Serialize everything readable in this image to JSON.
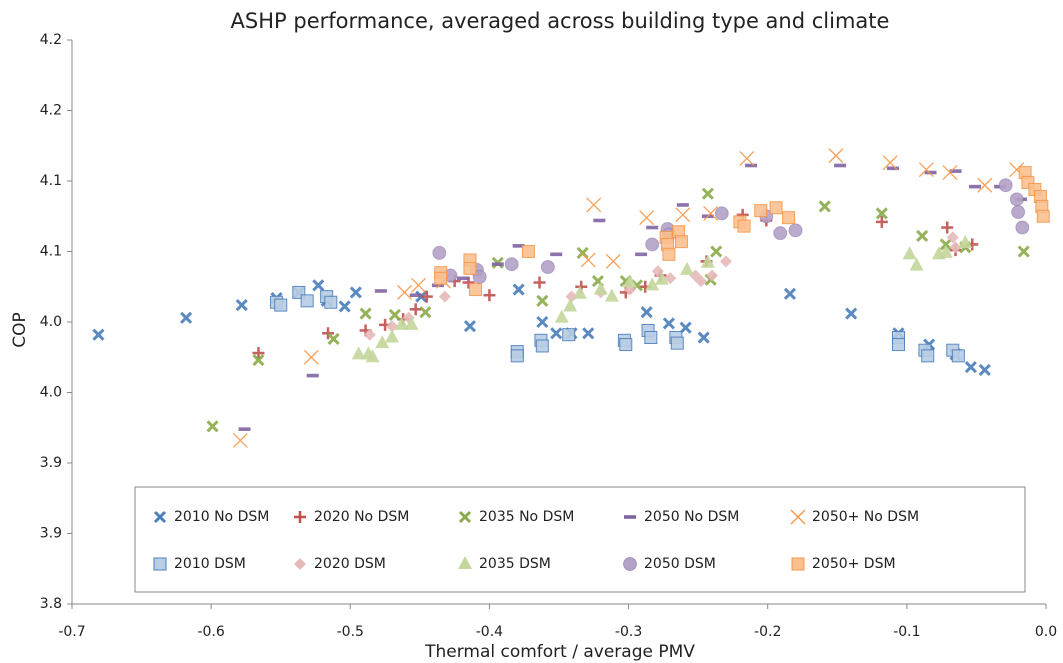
{
  "chart_data": {
    "type": "scatter",
    "title": "ASHP performance, averaged across building type and climate",
    "x_label": "Thermal comfort / average PMV",
    "y_label": "COP",
    "xlim": [
      -0.7,
      0.0
    ],
    "ylim": [
      3.8,
      4.2
    ],
    "xticks": [
      -0.7,
      -0.6,
      -0.5,
      -0.4,
      -0.3,
      -0.2,
      -0.1,
      {
        "value": 0,
        "label": "0.0"
      }
    ],
    "yticks": [
      3.8,
      {
        "value": 3.85,
        "label": "3.9"
      },
      3.9,
      {
        "value": 3.95,
        "label": "4.0"
      },
      {
        "value": 4.0,
        "label": "4.0"
      },
      {
        "value": 4.05,
        "label": "4.1"
      },
      4.1,
      {
        "value": 4.15,
        "label": "4.2"
      },
      4.2
    ],
    "legend": "bottom",
    "series": [
      {
        "name": "2010 No DSM",
        "color": "#4a7ebb",
        "marker": "x",
        "x": [
          -0.681,
          -0.618,
          -0.578,
          -0.553,
          -0.537,
          -0.523,
          -0.517,
          -0.504,
          -0.496,
          -0.449,
          -0.414,
          -0.379,
          -0.362,
          -0.352,
          -0.341,
          -0.329,
          -0.287,
          -0.271,
          -0.259,
          -0.246,
          -0.184,
          -0.14,
          -0.106,
          -0.084,
          -0.065,
          -0.054,
          -0.044
        ],
        "values": [
          3.991,
          4.003,
          4.012,
          4.017,
          4.021,
          4.026,
          4.015,
          4.011,
          4.021,
          4.018,
          3.997,
          4.023,
          4.0,
          3.992,
          3.992,
          3.992,
          4.007,
          3.999,
          3.996,
          3.989,
          4.02,
          4.006,
          3.992,
          3.984,
          3.977,
          3.968,
          3.966
        ]
      },
      {
        "name": "2020 No DSM",
        "color": "#c0504d",
        "marker": "plus",
        "x": [
          -0.566,
          -0.516,
          -0.489,
          -0.475,
          -0.462,
          -0.453,
          -0.445,
          -0.425,
          -0.415,
          -0.4,
          -0.364,
          -0.334,
          -0.302,
          -0.288,
          -0.277,
          -0.244,
          -0.218,
          -0.201,
          -0.118,
          -0.071,
          -0.065,
          -0.053
        ],
        "values": [
          3.978,
          3.992,
          3.994,
          3.998,
          4.002,
          4.009,
          4.018,
          4.029,
          4.028,
          4.019,
          4.028,
          4.025,
          4.021,
          4.025,
          4.033,
          4.043,
          4.076,
          4.072,
          4.071,
          4.067,
          4.051,
          4.055
        ]
      },
      {
        "name": "2035 No DSM",
        "color": "#8aab4a",
        "marker": "x",
        "x": [
          -0.599,
          -0.566,
          -0.512,
          -0.489,
          -0.468,
          -0.446,
          -0.394,
          -0.362,
          -0.333,
          -0.322,
          -0.302,
          -0.294,
          -0.243,
          -0.241,
          -0.237,
          -0.159,
          -0.118,
          -0.089,
          -0.072,
          -0.058,
          -0.016
        ],
        "values": [
          3.926,
          3.973,
          3.988,
          4.006,
          4.005,
          4.007,
          4.042,
          4.015,
          4.049,
          4.029,
          4.029,
          4.026,
          4.091,
          4.03,
          4.05,
          4.082,
          4.077,
          4.061,
          4.055,
          4.053,
          4.05
        ]
      },
      {
        "name": "2050 No DSM",
        "color": "#8064a2",
        "marker": "dash",
        "x": [
          -0.576,
          -0.527,
          -0.478,
          -0.453,
          -0.437,
          -0.419,
          -0.394,
          -0.379,
          -0.352,
          -0.321,
          -0.291,
          -0.283,
          -0.261,
          -0.243,
          -0.212,
          -0.148,
          -0.11,
          -0.083,
          -0.065,
          -0.051,
          -0.033,
          -0.018
        ],
        "values": [
          3.924,
          3.962,
          4.022,
          4.019,
          4.026,
          4.031,
          4.041,
          4.054,
          4.048,
          4.072,
          4.048,
          4.067,
          4.083,
          4.075,
          4.111,
          4.111,
          4.109,
          4.106,
          4.107,
          4.096,
          4.096,
          4.087
        ]
      },
      {
        "name": "2050+ No DSM",
        "color": "#f79646",
        "marker": "xthin",
        "x": [
          -0.579,
          -0.528,
          -0.461,
          -0.451,
          -0.433,
          -0.329,
          -0.325,
          -0.311,
          -0.287,
          -0.261,
          -0.241,
          -0.215,
          -0.151,
          -0.112,
          -0.086,
          -0.069,
          -0.044,
          -0.021
        ],
        "values": [
          3.916,
          3.975,
          4.021,
          4.026,
          4.029,
          4.044,
          4.083,
          4.043,
          4.074,
          4.076,
          4.077,
          4.116,
          4.118,
          4.113,
          4.108,
          4.106,
          4.097,
          4.108
        ]
      },
      {
        "name": "2010 DSM",
        "color": "#b9cde5",
        "marker": "square",
        "x": [
          -0.553,
          -0.55,
          -0.537,
          -0.531,
          -0.517,
          -0.514,
          -0.38,
          -0.38,
          -0.363,
          -0.362,
          -0.343,
          -0.303,
          -0.302,
          -0.286,
          -0.284,
          -0.266,
          -0.265,
          -0.106,
          -0.106,
          -0.087,
          -0.085,
          -0.067,
          -0.063
        ],
        "values": [
          4.014,
          4.012,
          4.021,
          4.015,
          4.018,
          4.014,
          3.979,
          3.976,
          3.987,
          3.983,
          3.991,
          3.987,
          3.984,
          3.994,
          3.989,
          3.989,
          3.985,
          3.989,
          3.984,
          3.98,
          3.976,
          3.98,
          3.976
        ]
      },
      {
        "name": "2020 DSM",
        "color": "#e6b9b8",
        "marker": "diamond",
        "x": [
          -0.486,
          -0.47,
          -0.458,
          -0.432,
          -0.341,
          -0.32,
          -0.299,
          -0.279,
          -0.27,
          -0.252,
          -0.248,
          -0.24,
          -0.23,
          -0.067,
          -0.065
        ],
        "values": [
          3.991,
          3.997,
          4.003,
          4.018,
          4.018,
          4.021,
          4.023,
          4.036,
          4.031,
          4.033,
          4.029,
          4.033,
          4.043,
          4.06,
          4.053
        ]
      },
      {
        "name": "2035 DSM",
        "color": "#c3d69b",
        "marker": "triangle",
        "x": [
          -0.494,
          -0.487,
          -0.484,
          -0.477,
          -0.47,
          -0.463,
          -0.456,
          -0.348,
          -0.342,
          -0.335,
          -0.32,
          -0.312,
          -0.299,
          -0.283,
          -0.276,
          -0.258,
          -0.243,
          -0.098,
          -0.093,
          -0.077,
          -0.072,
          -0.058
        ],
        "values": [
          3.977,
          3.977,
          3.975,
          3.985,
          3.989,
          3.998,
          3.998,
          4.003,
          4.011,
          4.02,
          4.023,
          4.018,
          4.028,
          4.026,
          4.03,
          4.037,
          4.042,
          4.048,
          4.04,
          4.048,
          4.049,
          4.056
        ]
      },
      {
        "name": "2050 DSM",
        "color": "#b3a2c7",
        "marker": "circle",
        "x": [
          -0.436,
          -0.428,
          -0.409,
          -0.407,
          -0.384,
          -0.358,
          -0.283,
          -0.272,
          -0.271,
          -0.233,
          -0.201,
          -0.191,
          -0.18,
          -0.029,
          -0.021,
          -0.02,
          -0.017
        ],
        "values": [
          4.049,
          4.033,
          4.037,
          4.032,
          4.041,
          4.039,
          4.055,
          4.066,
          4.062,
          4.077,
          4.075,
          4.063,
          4.065,
          4.097,
          4.087,
          4.078,
          4.067
        ]
      },
      {
        "name": "2050+ DSM",
        "color": "#fac090",
        "marker": "square",
        "x": [
          -0.435,
          -0.435,
          -0.414,
          -0.414,
          -0.41,
          -0.372,
          -0.273,
          -0.272,
          -0.271,
          -0.264,
          -0.262,
          -0.22,
          -0.217,
          -0.205,
          -0.194,
          -0.185,
          -0.015,
          -0.013,
          -0.008,
          -0.004,
          -0.003,
          -0.002
        ],
        "values": [
          4.035,
          4.031,
          4.044,
          4.038,
          4.023,
          4.05,
          4.06,
          4.055,
          4.048,
          4.064,
          4.057,
          4.071,
          4.068,
          4.079,
          4.081,
          4.074,
          4.106,
          4.099,
          4.094,
          4.089,
          4.082,
          4.075
        ]
      }
    ]
  }
}
